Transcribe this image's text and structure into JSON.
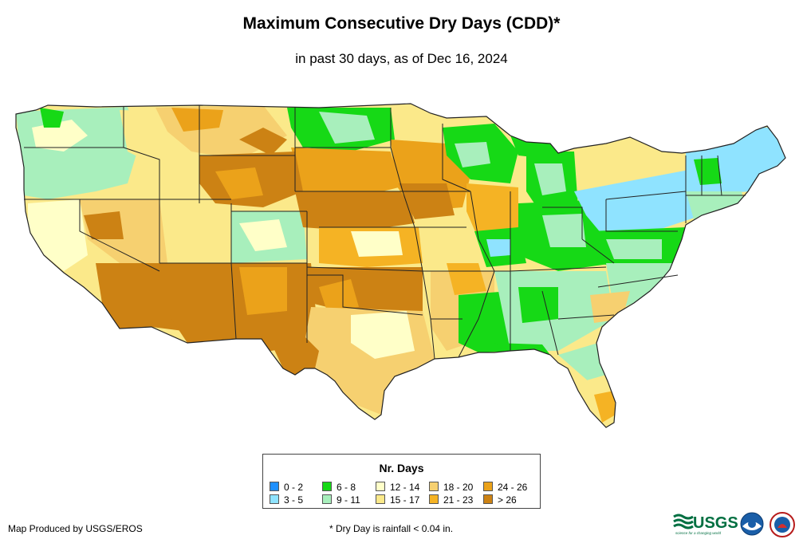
{
  "title": "Maximum Consecutive Dry Days (CDD)*",
  "subtitle": "in past 30 days, as of Dec 16, 2024",
  "legend": {
    "title": "Nr. Days",
    "items": [
      {
        "label": "0 - 2",
        "color": "#1e90ff"
      },
      {
        "label": "3 - 5",
        "color": "#8fe3ff"
      },
      {
        "label": "6 - 8",
        "color": "#16d916"
      },
      {
        "label": "9 - 11",
        "color": "#a8efbc"
      },
      {
        "label": "12 - 14",
        "color": "#ffffc8"
      },
      {
        "label": "15 - 17",
        "color": "#fbe98a"
      },
      {
        "label": "18 - 20",
        "color": "#f6d070"
      },
      {
        "label": "21 - 23",
        "color": "#f5b324"
      },
      {
        "label": "24 - 26",
        "color": "#eba21a"
      },
      {
        "label": "> 26",
        "color": "#cc8214"
      }
    ]
  },
  "footer": {
    "credit": "Map Produced by USGS/EROS",
    "footnote": "* Dry Day is rainfall < 0.04 in."
  },
  "logos": {
    "usgs_text": "USGS",
    "usgs_tagline": "science for a changing world",
    "noaa_text": "NOAA",
    "nws_text": "NWS"
  },
  "colors": {
    "state_border": "#222222",
    "background": "#ffffff"
  }
}
